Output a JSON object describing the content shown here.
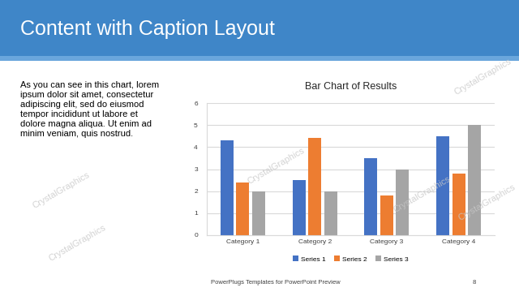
{
  "slide": {
    "title": "Content with Caption Layout",
    "caption": "As you can see in this chart, lorem ipsum dolor sit amet, consectetur adipiscing elit, sed do eiusmod tempor incididunt ut labore et dolore magna aliqua. Ut enim ad minim veniam, quis nostrud.",
    "footer": "PowerPlugs Templates for PowerPoint Preview",
    "page": 8,
    "watermark": "CrystalGraphics"
  },
  "chart_data": {
    "type": "bar",
    "title": "Bar Chart of Results",
    "categories": [
      "Category 1",
      "Category 2",
      "Category 3",
      "Category 4"
    ],
    "series": [
      {
        "name": "Series 1",
        "color": "#4472c4",
        "values": [
          4.3,
          2.5,
          3.5,
          4.5
        ]
      },
      {
        "name": "Series 2",
        "color": "#ed7d31",
        "values": [
          2.4,
          4.4,
          1.8,
          2.8
        ]
      },
      {
        "name": "Series 3",
        "color": "#a5a5a5",
        "values": [
          2,
          2,
          3,
          5
        ]
      }
    ],
    "ylim": [
      0,
      6
    ],
    "yticks": [
      0,
      1,
      2,
      3,
      4,
      5,
      6
    ],
    "grid": true,
    "legend": "bottom"
  }
}
